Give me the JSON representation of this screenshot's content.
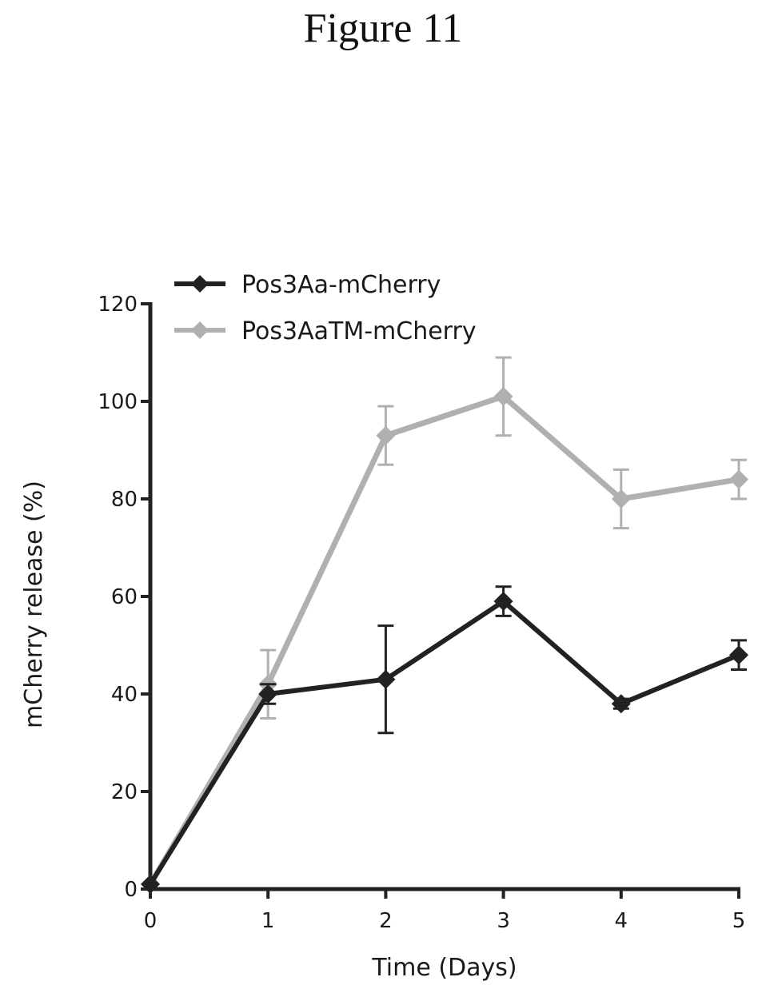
{
  "figure_title": "Figure 11",
  "chart_data": {
    "type": "line",
    "x": [
      0,
      1,
      2,
      3,
      4,
      5
    ],
    "xlabel": "Time (Days)",
    "ylabel": "mCherry release (%)",
    "xlim": [
      0,
      5
    ],
    "ylim": [
      0,
      120
    ],
    "x_ticks": [
      "0",
      "1",
      "2",
      "3",
      "4",
      "5"
    ],
    "y_ticks": [
      "0",
      "20",
      "40",
      "60",
      "80",
      "100",
      "120"
    ],
    "grid": false,
    "legend_position": "top-left",
    "series": [
      {
        "name": "Pos3Aa-mCherry",
        "color": "#222222",
        "marker": "diamond",
        "values": [
          1,
          40,
          43,
          59,
          38,
          48
        ],
        "error": [
          0,
          2,
          11,
          3,
          1,
          3
        ]
      },
      {
        "name": "Pos3AaTM-mCherry",
        "color": "#b0b0b0",
        "marker": "diamond",
        "values": [
          1,
          42,
          93,
          101,
          80,
          84
        ],
        "error": [
          0,
          7,
          6,
          8,
          6,
          4
        ]
      }
    ]
  }
}
